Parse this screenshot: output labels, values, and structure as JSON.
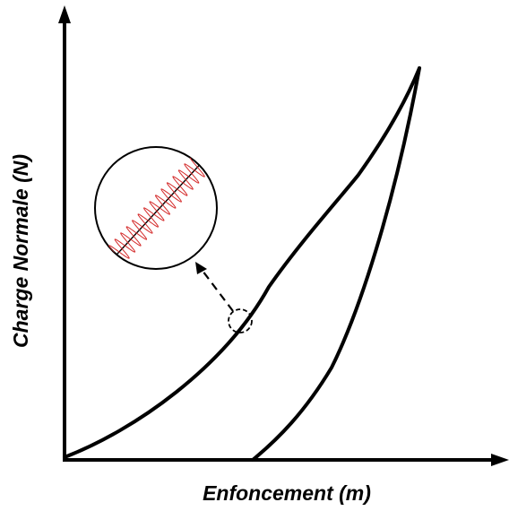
{
  "axes": {
    "x_label": "Enfoncement (m)",
    "y_label": "Charge Normale (N)"
  },
  "colors": {
    "ink": "#000000",
    "oscillation": "#d42a2a",
    "background": "#ffffff"
  }
}
